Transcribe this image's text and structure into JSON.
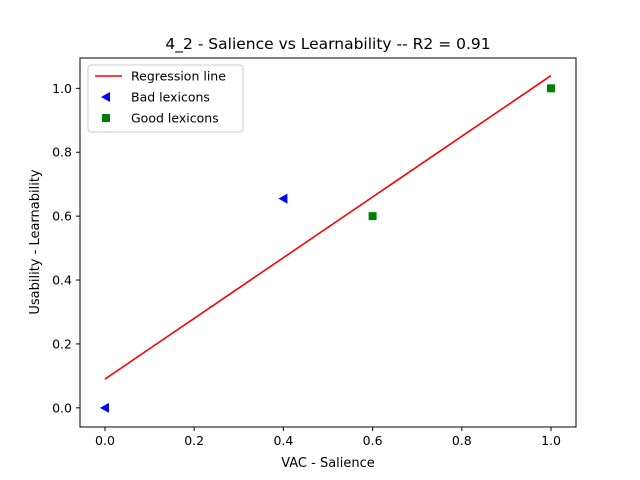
{
  "chart_data": {
    "type": "scatter",
    "title": "4_2 - Salience  vs  Learnability -- R2 = 0.91",
    "xlabel": "VAC - Salience",
    "ylabel": "Usability - Learnability",
    "xlim": [
      -0.056,
      1.056
    ],
    "ylim": [
      -0.06,
      1.095
    ],
    "xticks": [
      "0.0",
      "0.2",
      "0.4",
      "0.6",
      "0.8",
      "1.0"
    ],
    "yticks": [
      "0.0",
      "0.2",
      "0.4",
      "0.6",
      "0.8",
      "1.0"
    ],
    "grid": false,
    "legend_position": "top-left",
    "series": [
      {
        "name": "Regression line",
        "kind": "line",
        "color": "#ff0000",
        "points": [
          [
            0.0,
            0.09
          ],
          [
            1.0,
            1.04
          ]
        ]
      },
      {
        "name": "Bad lexicons",
        "kind": "scatter",
        "marker": "triangle-left",
        "color": "#0000ff",
        "points": [
          [
            0.0,
            0.0
          ],
          [
            0.4,
            0.655
          ]
        ]
      },
      {
        "name": "Good lexicons",
        "kind": "scatter",
        "marker": "square",
        "color": "#008000",
        "points": [
          [
            0.6,
            0.6
          ],
          [
            1.0,
            1.0
          ]
        ]
      }
    ]
  }
}
